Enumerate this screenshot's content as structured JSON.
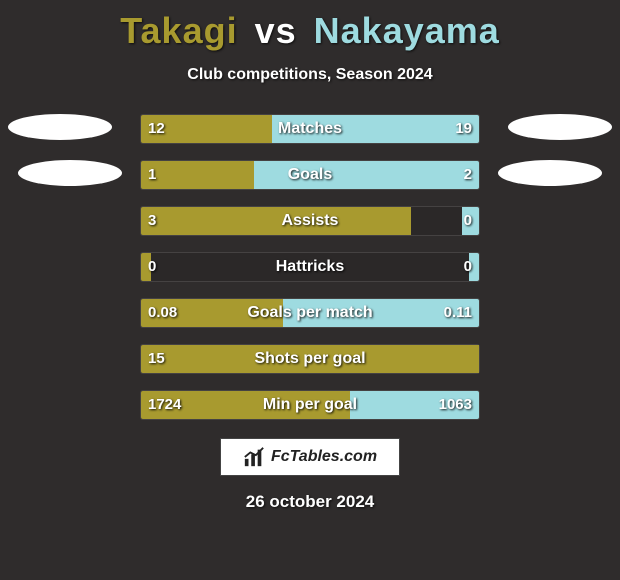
{
  "title": {
    "player1": "Takagi",
    "vs": "vs",
    "player2": "Nakayama",
    "player1_color": "#a89a2f",
    "player2_color": "#9edbe0"
  },
  "subtitle": "Club competitions, Season 2024",
  "bar_track_width": 340,
  "stats": [
    {
      "label": "Matches",
      "left_val": "12",
      "right_val": "19",
      "left_pct": 38.7,
      "right_pct": 61.3
    },
    {
      "label": "Goals",
      "left_val": "1",
      "right_val": "2",
      "left_pct": 33.3,
      "right_pct": 66.7
    },
    {
      "label": "Assists",
      "left_val": "3",
      "right_val": "0",
      "left_pct": 80.0,
      "right_pct": 5.0
    },
    {
      "label": "Hattricks",
      "left_val": "0",
      "right_val": "0",
      "left_pct": 3.0,
      "right_pct": 3.0
    },
    {
      "label": "Goals per match",
      "left_val": "0.08",
      "right_val": "0.11",
      "left_pct": 42.1,
      "right_pct": 57.9
    },
    {
      "label": "Shots per goal",
      "left_val": "15",
      "right_val": "",
      "left_pct": 100,
      "right_pct": 0
    },
    {
      "label": "Min per goal",
      "left_val": "1724",
      "right_val": "1063",
      "left_pct": 61.9,
      "right_pct": 38.1
    }
  ],
  "colors": {
    "left_bar": "#a89a2f",
    "right_bar": "#9edbe0",
    "background": "#2f2c2c"
  },
  "footer": {
    "logo_text": "FcTables.com",
    "date": "26 october 2024"
  }
}
